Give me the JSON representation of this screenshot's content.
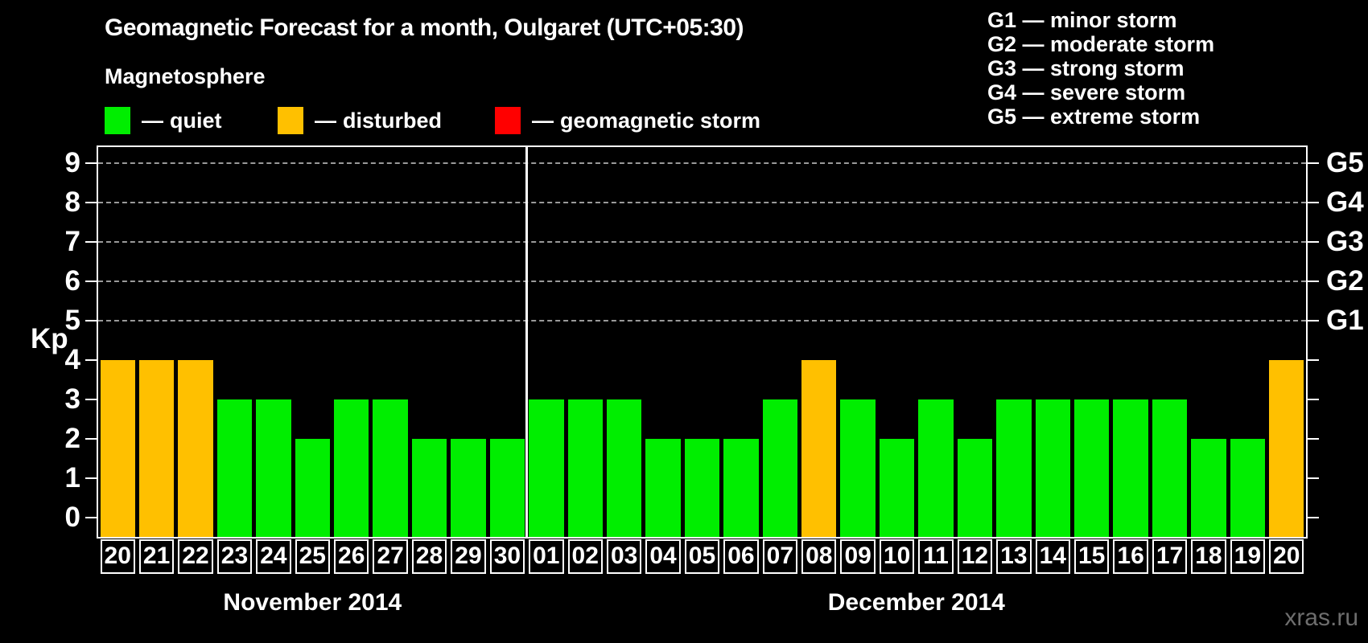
{
  "title": "Geomagnetic Forecast for a month, Oulgaret (UTC+05:30)",
  "subtitle": "Magnetosphere",
  "legend": {
    "dash": "—",
    "items": [
      {
        "label": "quiet",
        "color": "#00EE00"
      },
      {
        "label": "disturbed",
        "color": "#FFC000"
      },
      {
        "label": "geomagnetic storm",
        "color": "#FF0000"
      }
    ]
  },
  "g_legend": [
    "G1 — minor storm",
    "G2 — moderate storm",
    "G3 — strong storm",
    "G4 — severe storm",
    "G5 — extreme storm"
  ],
  "watermark": "xras.ru",
  "chart_data": {
    "type": "bar",
    "ylabel": "Kp",
    "ylim": [
      -0.5,
      9.4
    ],
    "yticks": [
      0,
      1,
      2,
      3,
      4,
      5,
      6,
      7,
      8,
      9
    ],
    "gridlines": [
      5,
      6,
      7,
      8,
      9
    ],
    "grid_style": "dashed",
    "right_axis": [
      {
        "kp": 5,
        "label": "G1"
      },
      {
        "kp": 6,
        "label": "G2"
      },
      {
        "kp": 7,
        "label": "G3"
      },
      {
        "kp": 8,
        "label": "G4"
      },
      {
        "kp": 9,
        "label": "G5"
      }
    ],
    "status_colors": {
      "quiet": "#00EE00",
      "disturbed": "#FFC000",
      "storm": "#FF0000"
    },
    "months": [
      {
        "label": "November 2014",
        "days": [
          {
            "date": "20",
            "kp": 4,
            "status": "disturbed"
          },
          {
            "date": "21",
            "kp": 4,
            "status": "disturbed"
          },
          {
            "date": "22",
            "kp": 4,
            "status": "disturbed"
          },
          {
            "date": "23",
            "kp": 3,
            "status": "quiet"
          },
          {
            "date": "24",
            "kp": 3,
            "status": "quiet"
          },
          {
            "date": "25",
            "kp": 2,
            "status": "quiet"
          },
          {
            "date": "26",
            "kp": 3,
            "status": "quiet"
          },
          {
            "date": "27",
            "kp": 3,
            "status": "quiet"
          },
          {
            "date": "28",
            "kp": 2,
            "status": "quiet"
          },
          {
            "date": "29",
            "kp": 2,
            "status": "quiet"
          },
          {
            "date": "30",
            "kp": 2,
            "status": "quiet"
          }
        ]
      },
      {
        "label": "December 2014",
        "days": [
          {
            "date": "01",
            "kp": 3,
            "status": "quiet"
          },
          {
            "date": "02",
            "kp": 3,
            "status": "quiet"
          },
          {
            "date": "03",
            "kp": 3,
            "status": "quiet"
          },
          {
            "date": "04",
            "kp": 2,
            "status": "quiet"
          },
          {
            "date": "05",
            "kp": 2,
            "status": "quiet"
          },
          {
            "date": "06",
            "kp": 2,
            "status": "quiet"
          },
          {
            "date": "07",
            "kp": 3,
            "status": "quiet"
          },
          {
            "date": "08",
            "kp": 4,
            "status": "disturbed"
          },
          {
            "date": "09",
            "kp": 3,
            "status": "quiet"
          },
          {
            "date": "10",
            "kp": 2,
            "status": "quiet"
          },
          {
            "date": "11",
            "kp": 3,
            "status": "quiet"
          },
          {
            "date": "12",
            "kp": 2,
            "status": "quiet"
          },
          {
            "date": "13",
            "kp": 3,
            "status": "quiet"
          },
          {
            "date": "14",
            "kp": 3,
            "status": "quiet"
          },
          {
            "date": "15",
            "kp": 3,
            "status": "quiet"
          },
          {
            "date": "16",
            "kp": 3,
            "status": "quiet"
          },
          {
            "date": "17",
            "kp": 3,
            "status": "quiet"
          },
          {
            "date": "18",
            "kp": 2,
            "status": "quiet"
          },
          {
            "date": "19",
            "kp": 2,
            "status": "quiet"
          },
          {
            "date": "20",
            "kp": 4,
            "status": "disturbed"
          }
        ]
      }
    ]
  }
}
